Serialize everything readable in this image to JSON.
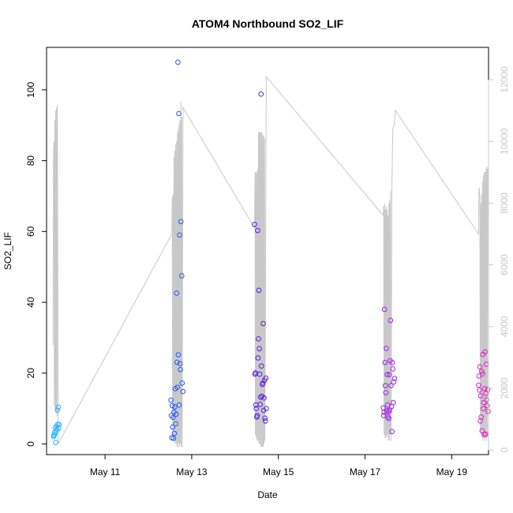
{
  "chart_data": {
    "type": "scatter",
    "title": "ATOM4 Northbound SO2_LIF",
    "xlabel": "Date",
    "ylabel": "SO2_LIF",
    "x_tick_labels": [
      "May 11",
      "May 13",
      "May 15",
      "May 17",
      "May 19"
    ],
    "x_ticks_days": [
      11,
      13,
      15,
      17,
      19
    ],
    "xlim_days": [
      9.65,
      19.85
    ],
    "ylim": [
      -3,
      112
    ],
    "y_ticks": [
      0,
      20,
      40,
      60,
      80,
      100
    ],
    "y2_ticks": [
      0,
      2000,
      4000,
      6000,
      8000,
      10000,
      12000
    ],
    "y2lim": [
      -150,
      13050
    ],
    "grid": false,
    "colors": {
      "secondary_series": "#c8c8c8",
      "axis_right": "#c8c8c8",
      "point_gradient": [
        "#29b6f6",
        "#1e5bff",
        "#5a1ee0",
        "#a020f0",
        "#e020c8"
      ]
    },
    "series": [
      {
        "axis": "left",
        "style": "points-circle-open",
        "points": [
          [
            9.81,
            2.1,
            0
          ],
          [
            9.82,
            2.4,
            0
          ],
          [
            9.83,
            3.2,
            0
          ],
          [
            9.84,
            2.7,
            0
          ],
          [
            9.85,
            4.5,
            0
          ],
          [
            9.86,
            0.4,
            0
          ],
          [
            9.87,
            3.5,
            0
          ],
          [
            9.88,
            5.0,
            0
          ],
          [
            9.89,
            4.2,
            0
          ],
          [
            9.9,
            9.6,
            0
          ],
          [
            9.91,
            5.6,
            0
          ],
          [
            9.92,
            10.4,
            0
          ],
          [
            9.93,
            4.4,
            0
          ],
          [
            9.94,
            5.5,
            0
          ],
          [
            12.52,
            12.4,
            1
          ],
          [
            12.53,
            8.0,
            1
          ],
          [
            12.54,
            1.8,
            1
          ],
          [
            12.55,
            10.8,
            1
          ],
          [
            12.56,
            4.8,
            1
          ],
          [
            12.57,
            7.5,
            1
          ],
          [
            12.58,
            1.6,
            1
          ],
          [
            12.59,
            9.0,
            1
          ],
          [
            12.6,
            3.0,
            1
          ],
          [
            12.61,
            10.5,
            1
          ],
          [
            12.62,
            15.6,
            1
          ],
          [
            12.63,
            5.7,
            1
          ],
          [
            12.64,
            8.4,
            1
          ],
          [
            12.65,
            42.6,
            1
          ],
          [
            12.66,
            23.1,
            1
          ],
          [
            12.67,
            16.0,
            1
          ],
          [
            12.68,
            107.8,
            1
          ],
          [
            12.69,
            25.2,
            1
          ],
          [
            12.7,
            93.3,
            1
          ],
          [
            12.71,
            11.0,
            1
          ],
          [
            12.72,
            59.0,
            1
          ],
          [
            12.73,
            22.7,
            1
          ],
          [
            12.74,
            21.0,
            1
          ],
          [
            12.75,
            62.8,
            1
          ],
          [
            12.77,
            47.5,
            1
          ],
          [
            12.78,
            17.2,
            1
          ],
          [
            12.8,
            14.8,
            1
          ],
          [
            14.45,
            62.0,
            2
          ],
          [
            14.46,
            19.7,
            2
          ],
          [
            14.47,
            20.1,
            2
          ],
          [
            14.48,
            11.0,
            2
          ],
          [
            14.49,
            10.0,
            2
          ],
          [
            14.5,
            7.6,
            2
          ],
          [
            14.51,
            8.0,
            2
          ],
          [
            14.52,
            60.3,
            2
          ],
          [
            14.53,
            24.3,
            2
          ],
          [
            14.54,
            29.7,
            2
          ],
          [
            14.55,
            43.4,
            2
          ],
          [
            14.56,
            26.9,
            2
          ],
          [
            14.57,
            19.7,
            2
          ],
          [
            14.58,
            11.2,
            2
          ],
          [
            14.59,
            13.2,
            2
          ],
          [
            14.6,
            98.8,
            2
          ],
          [
            14.61,
            22.0,
            2
          ],
          [
            14.62,
            13.5,
            2
          ],
          [
            14.63,
            16.8,
            2
          ],
          [
            14.64,
            17.2,
            2
          ],
          [
            14.65,
            34.0,
            2
          ],
          [
            14.66,
            9.5,
            2
          ],
          [
            14.67,
            13.0,
            2
          ],
          [
            14.68,
            18.0,
            2
          ],
          [
            14.69,
            7.3,
            2
          ],
          [
            14.7,
            6.5,
            2
          ],
          [
            14.71,
            18.6,
            2
          ],
          [
            14.72,
            10.0,
            2
          ],
          [
            17.42,
            10.2,
            3
          ],
          [
            17.43,
            8.0,
            3
          ],
          [
            17.44,
            9.0,
            3
          ],
          [
            17.45,
            38.0,
            3
          ],
          [
            17.46,
            23.0,
            3
          ],
          [
            17.47,
            16.5,
            3
          ],
          [
            17.48,
            14.5,
            3
          ],
          [
            17.49,
            27.0,
            3
          ],
          [
            17.5,
            9.4,
            3
          ],
          [
            17.51,
            19.6,
            3
          ],
          [
            17.52,
            11.0,
            3
          ],
          [
            17.53,
            7.6,
            3
          ],
          [
            17.54,
            9.1,
            3
          ],
          [
            17.55,
            7.2,
            3
          ],
          [
            17.56,
            19.6,
            3
          ],
          [
            17.57,
            9.5,
            3
          ],
          [
            17.58,
            23.5,
            3
          ],
          [
            17.59,
            34.9,
            3
          ],
          [
            17.6,
            16.5,
            3
          ],
          [
            17.61,
            10.6,
            3
          ],
          [
            17.62,
            3.5,
            3
          ],
          [
            17.63,
            23.0,
            3
          ],
          [
            17.64,
            21.2,
            3
          ],
          [
            17.65,
            11.7,
            3
          ],
          [
            17.66,
            17.5,
            3
          ],
          [
            17.68,
            18.5,
            3
          ],
          [
            19.62,
            16.6,
            4
          ],
          [
            19.63,
            19.2,
            4
          ],
          [
            19.64,
            15.2,
            4
          ],
          [
            19.65,
            21.8,
            4
          ],
          [
            19.66,
            6.5,
            4
          ],
          [
            19.67,
            13.6,
            4
          ],
          [
            19.68,
            7.6,
            4
          ],
          [
            19.69,
            20.5,
            4
          ],
          [
            19.7,
            3.7,
            4
          ],
          [
            19.71,
            19.8,
            4
          ],
          [
            19.72,
            25.3,
            4
          ],
          [
            19.73,
            10.0,
            4
          ],
          [
            19.74,
            11.7,
            4
          ],
          [
            19.75,
            2.7,
            4
          ],
          [
            19.76,
            15.6,
            4
          ],
          [
            19.77,
            26.0,
            4
          ],
          [
            19.78,
            2.8,
            4
          ],
          [
            19.79,
            14.3,
            4
          ],
          [
            19.8,
            22.5,
            4
          ],
          [
            19.81,
            12.5,
            4
          ],
          [
            19.82,
            10.8,
            4
          ],
          [
            19.83,
            15.4,
            4
          ],
          [
            19.84,
            9.2,
            4
          ]
        ]
      },
      {
        "axis": "right",
        "style": "line",
        "points": [
          [
            9.8,
            3400
          ],
          [
            9.81,
            9700
          ],
          [
            9.82,
            10000
          ],
          [
            9.83,
            1400
          ],
          [
            9.84,
            10700
          ],
          [
            9.85,
            1300
          ],
          [
            9.86,
            11000
          ],
          [
            9.87,
            1200
          ],
          [
            9.88,
            11100
          ],
          [
            9.89,
            1100
          ],
          [
            9.9,
            11200
          ],
          [
            9.92,
            200
          ],
          [
            12.54,
            7000
          ],
          [
            12.55,
            8200
          ],
          [
            12.56,
            400
          ],
          [
            12.57,
            8300
          ],
          [
            12.58,
            400
          ],
          [
            12.59,
            9500
          ],
          [
            12.6,
            300
          ],
          [
            12.61,
            9700
          ],
          [
            12.62,
            200
          ],
          [
            12.63,
            9900
          ],
          [
            12.64,
            200
          ],
          [
            12.65,
            10000
          ],
          [
            12.66,
            100
          ],
          [
            12.67,
            10300
          ],
          [
            12.68,
            100
          ],
          [
            12.69,
            10400
          ],
          [
            12.7,
            200
          ],
          [
            12.71,
            10600
          ],
          [
            12.72,
            100
          ],
          [
            12.73,
            10700
          ],
          [
            12.74,
            200
          ],
          [
            12.75,
            11300
          ],
          [
            12.76,
            100
          ],
          [
            12.77,
            10800
          ],
          [
            12.78,
            100
          ],
          [
            12.8,
            11100
          ],
          [
            14.45,
            7200
          ],
          [
            14.46,
            9000
          ],
          [
            14.47,
            500
          ],
          [
            14.48,
            9000
          ],
          [
            14.49,
            400
          ],
          [
            14.5,
            9000
          ],
          [
            14.51,
            300
          ],
          [
            14.52,
            9100
          ],
          [
            14.53,
            300
          ],
          [
            14.54,
            10300
          ],
          [
            14.55,
            200
          ],
          [
            14.56,
            10300
          ],
          [
            14.57,
            200
          ],
          [
            14.58,
            10300
          ],
          [
            14.59,
            100
          ],
          [
            14.6,
            10300
          ],
          [
            14.61,
            100
          ],
          [
            14.62,
            10300
          ],
          [
            14.63,
            100
          ],
          [
            14.64,
            10200
          ],
          [
            14.65,
            100
          ],
          [
            14.66,
            10200
          ],
          [
            14.67,
            200
          ],
          [
            14.68,
            10100
          ],
          [
            14.69,
            300
          ],
          [
            14.72,
            12100
          ],
          [
            17.42,
            7600
          ],
          [
            17.43,
            7900
          ],
          [
            17.44,
            500
          ],
          [
            17.45,
            8000
          ],
          [
            17.46,
            400
          ],
          [
            17.47,
            7800
          ],
          [
            17.48,
            400
          ],
          [
            17.49,
            7900
          ],
          [
            17.5,
            400
          ],
          [
            17.51,
            7800
          ],
          [
            17.52,
            500
          ],
          [
            17.53,
            7600
          ],
          [
            17.54,
            300
          ],
          [
            17.55,
            8000
          ],
          [
            17.56,
            300
          ],
          [
            17.57,
            8100
          ],
          [
            17.58,
            500
          ],
          [
            17.59,
            8400
          ],
          [
            17.6,
            300
          ],
          [
            17.62,
            8600
          ],
          [
            17.64,
            10400
          ],
          [
            17.67,
            10500
          ],
          [
            17.7,
            11000
          ],
          [
            19.62,
            7000
          ],
          [
            19.63,
            8500
          ],
          [
            19.64,
            8400
          ],
          [
            19.65,
            8200
          ],
          [
            19.66,
            600
          ],
          [
            19.67,
            8000
          ],
          [
            19.68,
            500
          ],
          [
            19.69,
            8300
          ],
          [
            19.7,
            400
          ],
          [
            19.71,
            8700
          ],
          [
            19.72,
            300
          ],
          [
            19.73,
            8900
          ],
          [
            19.74,
            400
          ],
          [
            19.75,
            9000
          ],
          [
            19.76,
            300
          ],
          [
            19.77,
            9000
          ],
          [
            19.78,
            400
          ],
          [
            19.79,
            9100
          ],
          [
            19.8,
            300
          ],
          [
            19.81,
            9200
          ],
          [
            19.82,
            400
          ],
          [
            19.83,
            9100
          ],
          [
            19.84,
            9100
          ]
        ]
      }
    ]
  }
}
